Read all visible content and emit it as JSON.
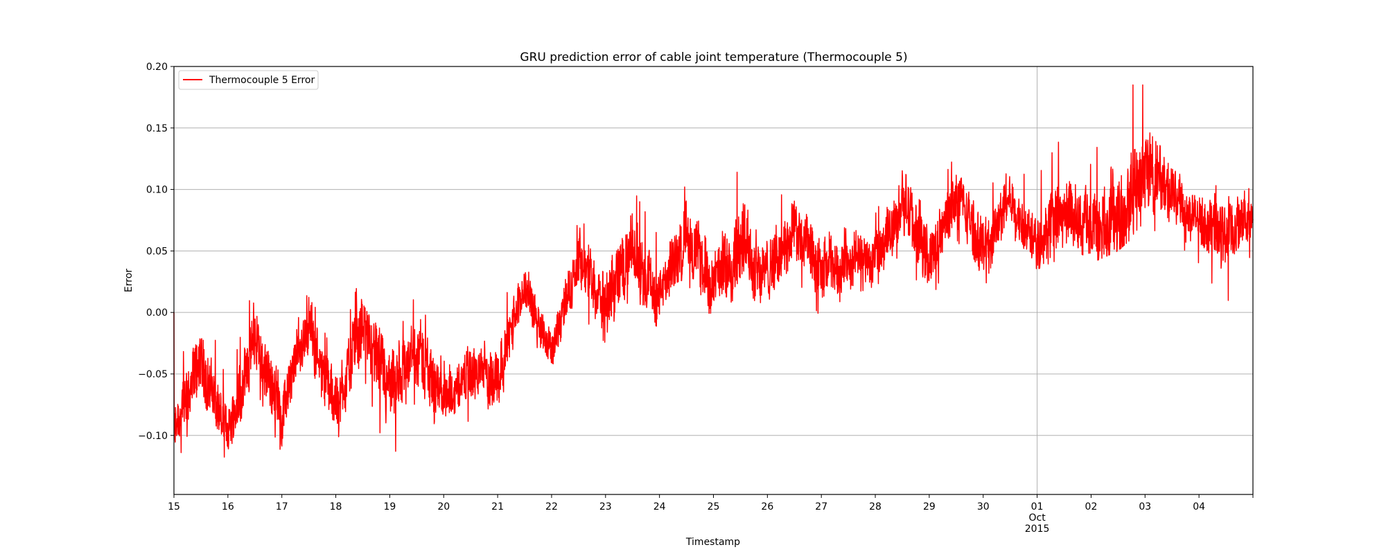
{
  "chart_data": {
    "type": "line",
    "title": "GRU prediction error of cable joint temperature (Thermocouple 5)",
    "xlabel": "Timestamp",
    "ylabel": "Error",
    "ylim": [
      -0.148,
      0.2
    ],
    "xlim": [
      "2015-09-15",
      "2015-10-05"
    ],
    "grid": true,
    "legend_position": "top-left",
    "y_ticks": [
      "0.20",
      "0.15",
      "0.10",
      "0.05",
      "0.00",
      "−0.05",
      "−0.10"
    ],
    "x_ticks": [
      "15",
      "16",
      "17",
      "18",
      "19",
      "20",
      "21",
      "22",
      "23",
      "24",
      "25",
      "26",
      "27",
      "28",
      "29",
      "30",
      "01",
      "02",
      "03",
      "04"
    ],
    "x_tick_month_label": "Oct",
    "x_tick_year_label": "2015",
    "series": [
      {
        "name": "Thermocouple 5 Error",
        "color": "#ff0000",
        "x": [
          "2015-09-15",
          "2015-09-15 12:00",
          "2015-09-16",
          "2015-09-16 12:00",
          "2015-09-17",
          "2015-09-17 12:00",
          "2015-09-18",
          "2015-09-18 12:00",
          "2015-09-19",
          "2015-09-19 12:00",
          "2015-09-20",
          "2015-09-20 12:00",
          "2015-09-21",
          "2015-09-21 12:00",
          "2015-09-22",
          "2015-09-22 12:00",
          "2015-09-23",
          "2015-09-23 12:00",
          "2015-09-24",
          "2015-09-24 12:00",
          "2015-09-25",
          "2015-09-25 12:00",
          "2015-09-26",
          "2015-09-26 12:00",
          "2015-09-27",
          "2015-09-27 12:00",
          "2015-09-28",
          "2015-09-28 12:00",
          "2015-09-29",
          "2015-09-29 12:00",
          "2015-09-30",
          "2015-09-30 12:00",
          "2015-10-01",
          "2015-10-01 12:00",
          "2015-10-02",
          "2015-10-02 12:00",
          "2015-10-03",
          "2015-10-03 12:00",
          "2015-10-04",
          "2015-10-04 12:00",
          "2015-10-05"
        ],
        "mean": [
          -0.1,
          -0.04,
          -0.1,
          -0.02,
          -0.08,
          -0.01,
          -0.08,
          -0.01,
          -0.07,
          -0.03,
          -0.07,
          -0.05,
          -0.05,
          0.02,
          -0.03,
          0.04,
          0.01,
          0.05,
          0.01,
          0.065,
          0.02,
          0.06,
          0.03,
          0.07,
          0.03,
          0.045,
          0.04,
          0.09,
          0.04,
          0.095,
          0.05,
          0.09,
          0.06,
          0.08,
          0.07,
          0.075,
          0.12,
          0.095,
          0.075,
          0.065,
          0.075
        ],
        "min": [
          -0.13,
          -0.07,
          -0.125,
          -0.06,
          -0.115,
          -0.05,
          -0.12,
          -0.05,
          -0.125,
          -0.07,
          -0.123,
          -0.085,
          -0.08,
          -0.01,
          -0.05,
          0.0,
          -0.025,
          0.015,
          -0.015,
          0.025,
          -0.015,
          0.01,
          0.0,
          0.03,
          -0.005,
          0.015,
          0.02,
          0.05,
          0.005,
          0.06,
          0.02,
          0.055,
          0.035,
          0.045,
          0.04,
          0.05,
          0.07,
          0.06,
          0.04,
          0.006,
          0.05
        ],
        "max": [
          -0.06,
          0.02,
          -0.06,
          0.027,
          -0.04,
          0.018,
          -0.04,
          0.038,
          -0.03,
          0.016,
          -0.04,
          -0.02,
          0.0,
          0.046,
          0.0,
          0.075,
          0.06,
          0.101,
          0.06,
          0.105,
          0.065,
          0.121,
          0.08,
          0.11,
          0.075,
          0.085,
          0.08,
          0.13,
          0.085,
          0.13,
          0.1,
          0.115,
          0.11,
          0.146,
          0.12,
          0.185,
          0.185,
          0.136,
          0.1,
          0.105,
          0.1
        ]
      }
    ]
  }
}
